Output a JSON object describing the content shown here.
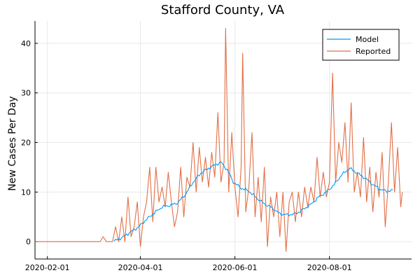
{
  "chart_data": {
    "type": "line",
    "title": "Stafford County, VA",
    "xlabel": "",
    "ylabel": "New Cases Per Day",
    "x_range": [
      "2020-01-24",
      "2020-09-23"
    ],
    "ylim": [
      -3.5,
      44.5
    ],
    "x_ticks": [
      "2020-02-01",
      "2020-04-01",
      "2020-06-01",
      "2020-08-01"
    ],
    "y_ticks": [
      0,
      10,
      20,
      30,
      40
    ],
    "grid": true,
    "legend_position": "top-right",
    "series": [
      {
        "name": "Model",
        "color": "#009af9",
        "points": [
          [
            "2020-03-15",
            0.1
          ],
          [
            "2020-03-20",
            0.8
          ],
          [
            "2020-03-25",
            1.8
          ],
          [
            "2020-03-31",
            3.0
          ],
          [
            "2020-04-05",
            4.5
          ],
          [
            "2020-04-10",
            5.8
          ],
          [
            "2020-04-15",
            7.0
          ],
          [
            "2020-04-20",
            7.3
          ],
          [
            "2020-04-25",
            7.8
          ],
          [
            "2020-04-30",
            9.5
          ],
          [
            "2020-05-05",
            12.0
          ],
          [
            "2020-05-10",
            13.8
          ],
          [
            "2020-05-15",
            14.8
          ],
          [
            "2020-05-20",
            15.6
          ],
          [
            "2020-05-23",
            16.0
          ],
          [
            "2020-05-27",
            14.5
          ],
          [
            "2020-05-31",
            12.0
          ],
          [
            "2020-06-05",
            10.8
          ],
          [
            "2020-06-10",
            10.2
          ],
          [
            "2020-06-15",
            8.8
          ],
          [
            "2020-06-20",
            7.6
          ],
          [
            "2020-06-25",
            6.8
          ],
          [
            "2020-06-30",
            5.6
          ],
          [
            "2020-07-05",
            5.4
          ],
          [
            "2020-07-10",
            5.6
          ],
          [
            "2020-07-15",
            6.5
          ],
          [
            "2020-07-20",
            7.5
          ],
          [
            "2020-07-25",
            9.0
          ],
          [
            "2020-07-30",
            10.0
          ],
          [
            "2020-08-04",
            11.5
          ],
          [
            "2020-08-09",
            13.5
          ],
          [
            "2020-08-14",
            14.8
          ],
          [
            "2020-08-19",
            13.8
          ],
          [
            "2020-08-24",
            12.8
          ],
          [
            "2020-08-29",
            11.5
          ],
          [
            "2020-09-03",
            10.5
          ],
          [
            "2020-09-07",
            10.2
          ],
          [
            "2020-09-11",
            10.3
          ]
        ]
      },
      {
        "name": "Reported",
        "color": "#e26f46",
        "points": [
          [
            "2020-01-24",
            0
          ],
          [
            "2020-03-06",
            0
          ],
          [
            "2020-03-08",
            1
          ],
          [
            "2020-03-10",
            0
          ],
          [
            "2020-03-14",
            0
          ],
          [
            "2020-03-16",
            3
          ],
          [
            "2020-03-18",
            0
          ],
          [
            "2020-03-20",
            5
          ],
          [
            "2020-03-22",
            0
          ],
          [
            "2020-03-24",
            9
          ],
          [
            "2020-03-26",
            1
          ],
          [
            "2020-03-28",
            3
          ],
          [
            "2020-03-30",
            8
          ],
          [
            "2020-04-01",
            -1
          ],
          [
            "2020-04-03",
            5
          ],
          [
            "2020-04-05",
            8
          ],
          [
            "2020-04-07",
            15
          ],
          [
            "2020-04-09",
            4
          ],
          [
            "2020-04-11",
            15
          ],
          [
            "2020-04-13",
            8
          ],
          [
            "2020-04-15",
            11
          ],
          [
            "2020-04-17",
            7
          ],
          [
            "2020-04-19",
            14
          ],
          [
            "2020-04-21",
            8
          ],
          [
            "2020-04-23",
            3
          ],
          [
            "2020-04-25",
            6
          ],
          [
            "2020-04-27",
            15
          ],
          [
            "2020-04-29",
            5
          ],
          [
            "2020-05-01",
            13
          ],
          [
            "2020-05-03",
            11
          ],
          [
            "2020-05-05",
            20
          ],
          [
            "2020-05-07",
            10
          ],
          [
            "2020-05-09",
            19
          ],
          [
            "2020-05-11",
            12
          ],
          [
            "2020-05-13",
            17
          ],
          [
            "2020-05-15",
            11
          ],
          [
            "2020-05-17",
            18
          ],
          [
            "2020-05-19",
            13
          ],
          [
            "2020-05-21",
            26
          ],
          [
            "2020-05-23",
            12
          ],
          [
            "2020-05-25",
            16
          ],
          [
            "2020-05-26",
            43
          ],
          [
            "2020-05-28",
            10
          ],
          [
            "2020-05-30",
            22
          ],
          [
            "2020-06-01",
            11
          ],
          [
            "2020-06-03",
            5
          ],
          [
            "2020-06-05",
            15
          ],
          [
            "2020-06-06",
            38
          ],
          [
            "2020-06-08",
            6
          ],
          [
            "2020-06-10",
            11
          ],
          [
            "2020-06-12",
            22
          ],
          [
            "2020-06-14",
            5
          ],
          [
            "2020-06-16",
            13
          ],
          [
            "2020-06-18",
            4
          ],
          [
            "2020-06-20",
            15
          ],
          [
            "2020-06-22",
            -1
          ],
          [
            "2020-06-24",
            9
          ],
          [
            "2020-06-26",
            5
          ],
          [
            "2020-06-28",
            10
          ],
          [
            "2020-06-30",
            1
          ],
          [
            "2020-07-02",
            10
          ],
          [
            "2020-07-04",
            -2
          ],
          [
            "2020-07-06",
            8
          ],
          [
            "2020-07-08",
            10
          ],
          [
            "2020-07-10",
            4
          ],
          [
            "2020-07-12",
            10
          ],
          [
            "2020-07-14",
            5
          ],
          [
            "2020-07-16",
            11
          ],
          [
            "2020-07-18",
            7
          ],
          [
            "2020-07-20",
            11
          ],
          [
            "2020-07-22",
            8
          ],
          [
            "2020-07-24",
            17
          ],
          [
            "2020-07-26",
            9
          ],
          [
            "2020-07-28",
            14
          ],
          [
            "2020-07-30",
            9
          ],
          [
            "2020-08-01",
            12
          ],
          [
            "2020-08-03",
            34
          ],
          [
            "2020-08-05",
            12
          ],
          [
            "2020-08-07",
            20
          ],
          [
            "2020-08-09",
            16
          ],
          [
            "2020-08-11",
            24
          ],
          [
            "2020-08-13",
            12
          ],
          [
            "2020-08-15",
            28
          ],
          [
            "2020-08-17",
            10
          ],
          [
            "2020-08-19",
            14
          ],
          [
            "2020-08-21",
            9
          ],
          [
            "2020-08-23",
            21
          ],
          [
            "2020-08-25",
            8
          ],
          [
            "2020-08-27",
            15
          ],
          [
            "2020-08-29",
            6
          ],
          [
            "2020-08-31",
            14
          ],
          [
            "2020-09-02",
            9
          ],
          [
            "2020-09-04",
            18
          ],
          [
            "2020-09-06",
            3
          ],
          [
            "2020-09-08",
            12
          ],
          [
            "2020-09-10",
            24
          ],
          [
            "2020-09-12",
            10
          ],
          [
            "2020-09-14",
            19
          ],
          [
            "2020-09-16",
            7
          ],
          [
            "2020-09-17",
            10
          ]
        ]
      }
    ]
  }
}
